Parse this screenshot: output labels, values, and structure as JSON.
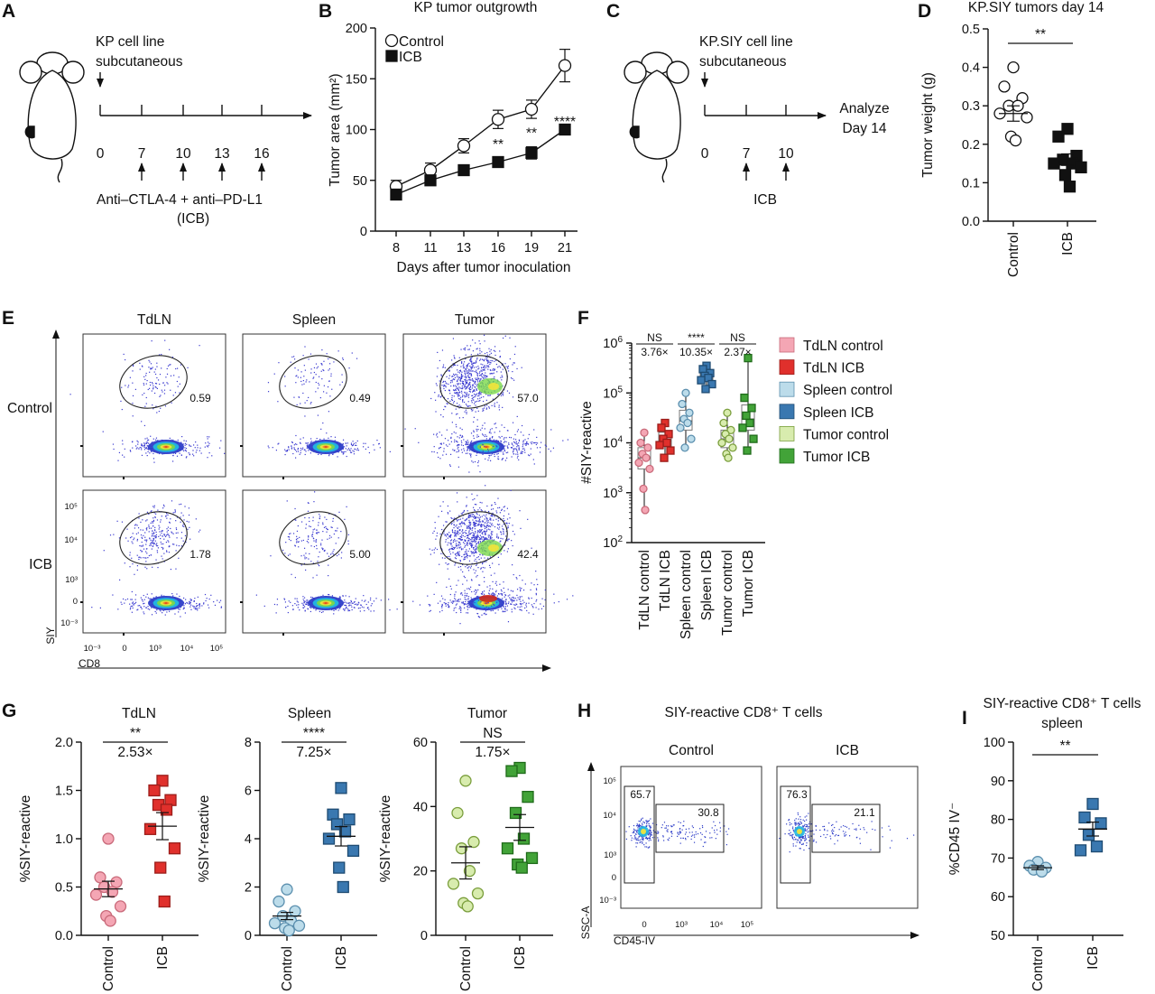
{
  "colors": {
    "tdln_control": "#f4a6b4",
    "tdln_icb": "#e0302c",
    "spleen_control": "#bcdcea",
    "spleen_icb": "#3a78b0",
    "tumor_control": "#d8ecae",
    "tumor_icb": "#42a338",
    "ink": "#111111"
  },
  "panel_a": {
    "label": "A",
    "text1": "KP cell line",
    "text2": "subcutaneous",
    "days": [
      "0",
      "7",
      "10",
      "13",
      "16"
    ],
    "treat1": "Anti–CTLA-4 + anti–PD-L1",
    "treat2": "(ICB)",
    "icon": "mouse-icon"
  },
  "panel_b": {
    "label": "B",
    "chart_data": {
      "type": "line",
      "title": "KP tumor outgrowth",
      "xlabel": "Days after tumor inoculation",
      "ylabel": "Tumor area (mm²)",
      "ylim": [
        0,
        200
      ],
      "yticks": [
        "0",
        "50",
        "100",
        "150",
        "200"
      ],
      "x": [
        "8",
        "11",
        "13",
        "16",
        "19",
        "21"
      ],
      "series": [
        {
          "name": "Control",
          "marker": "open-circle",
          "values": [
            44,
            60,
            84,
            110,
            120,
            163
          ],
          "err": [
            6,
            7,
            7,
            9,
            9,
            16
          ]
        },
        {
          "name": "ICB",
          "marker": "filled-square",
          "values": [
            36,
            50,
            60,
            68,
            77,
            100
          ],
          "err": [
            4,
            4,
            4,
            4,
            6,
            4
          ]
        }
      ],
      "annotations": [
        {
          "x": "16",
          "text": "**"
        },
        {
          "x": "19",
          "text": "**"
        },
        {
          "x": "21",
          "text": "****"
        }
      ],
      "legend": "top-left"
    }
  },
  "panel_c": {
    "label": "C",
    "text1": "KP.SIY cell line",
    "text2": "subcutaneous",
    "days": [
      "0",
      "7",
      "10"
    ],
    "treat": "ICB",
    "analyze1": "Analyze",
    "analyze2": "Day 14",
    "icon": "mouse-icon"
  },
  "panel_d": {
    "label": "D",
    "chart_data": {
      "type": "scatter",
      "title": "KP.SIY tumors day 14",
      "ylabel": "Tumor weight (g)",
      "ylim": [
        0,
        0.5
      ],
      "yticks": [
        "0.0",
        "0.1",
        "0.2",
        "0.3",
        "0.4",
        "0.5"
      ],
      "categories": [
        "Control",
        "ICB"
      ],
      "groups": [
        {
          "name": "Control",
          "marker": "open-circle",
          "points": [
            0.4,
            0.35,
            0.32,
            0.3,
            0.3,
            0.28,
            0.27,
            0.22,
            0.21
          ],
          "mean": 0.28,
          "sem": 0.02
        },
        {
          "name": "ICB",
          "marker": "filled-square",
          "points": [
            0.24,
            0.22,
            0.17,
            0.16,
            0.15,
            0.15,
            0.14,
            0.12,
            0.09
          ],
          "mean": 0.16,
          "sem": 0.015
        }
      ],
      "significance": "**"
    }
  },
  "panel_e": {
    "label": "E",
    "columns": [
      "TdLN",
      "Spleen",
      "Tumor"
    ],
    "rows": [
      "Control",
      "ICB"
    ],
    "gates": [
      [
        "0.59",
        "0.49",
        "57.0"
      ],
      [
        "1.78",
        "5.00",
        "42.4"
      ]
    ],
    "ylabel": "SIY",
    "xlabel": "CD8",
    "yticks": [
      "10⁵",
      "10⁴",
      "10³",
      "0",
      "10⁻³"
    ],
    "xticks": [
      "10⁻³",
      "0",
      "10³",
      "10⁴",
      "10⁵"
    ]
  },
  "panel_f": {
    "label": "F",
    "chart_data": {
      "type": "box",
      "ylabel": "#SIY-reactive",
      "yscale": "log",
      "ylim": [
        100,
        1000000
      ],
      "yticks": [
        {
          "base": "10",
          "exp": "2"
        },
        {
          "base": "10",
          "exp": "3"
        },
        {
          "base": "10",
          "exp": "4"
        },
        {
          "base": "10",
          "exp": "5"
        },
        {
          "base": "10",
          "exp": "6"
        }
      ],
      "categories": [
        "TdLN control",
        "TdLN ICB",
        "Spleen control",
        "Spleen ICB",
        "Tumor control",
        "Tumor ICB"
      ],
      "groups": [
        {
          "name": "TdLN control",
          "marker": "circle",
          "points": [
            16000,
            10000,
            8000,
            6000,
            5000,
            4000,
            3000,
            1200,
            450
          ]
        },
        {
          "name": "TdLN ICB",
          "marker": "square",
          "points": [
            25000,
            20000,
            15000,
            12000,
            10000,
            9000,
            7000,
            5000
          ]
        },
        {
          "name": "Spleen control",
          "marker": "circle",
          "points": [
            100000,
            60000,
            40000,
            30000,
            25000,
            20000,
            12000,
            8000
          ]
        },
        {
          "name": "Spleen ICB",
          "marker": "square",
          "points": [
            350000,
            300000,
            250000,
            220000,
            200000,
            180000,
            150000,
            120000
          ]
        },
        {
          "name": "Tumor control",
          "marker": "circle",
          "points": [
            40000,
            25000,
            18000,
            15000,
            12000,
            10000,
            8000,
            6000,
            5000
          ]
        },
        {
          "name": "Tumor ICB",
          "marker": "square",
          "points": [
            500000,
            80000,
            50000,
            35000,
            25000,
            20000,
            12000,
            7000
          ]
        }
      ],
      "comparisons": [
        {
          "pair": [
            "TdLN control",
            "TdLN ICB"
          ],
          "sig": "NS",
          "fold": "3.76×"
        },
        {
          "pair": [
            "Spleen control",
            "Spleen ICB"
          ],
          "sig": "****",
          "fold": "10.35×"
        },
        {
          "pair": [
            "Tumor control",
            "Tumor ICB"
          ],
          "sig": "NS",
          "fold": "2.37×"
        }
      ],
      "legend": "right"
    }
  },
  "panel_g": {
    "label": "G",
    "chart_data": [
      {
        "type": "scatter",
        "title": "TdLN",
        "ylabel": "%SIY-reactive",
        "ylim": [
          0,
          2.0
        ],
        "yticks": [
          "0.0",
          "0.5",
          "1.0",
          "1.5",
          "2.0"
        ],
        "categories": [
          "Control",
          "ICB"
        ],
        "sig": "**",
        "fold": "2.53×",
        "groups": [
          {
            "name": "Control",
            "points": [
              1.0,
              0.6,
              0.55,
              0.5,
              0.45,
              0.42,
              0.3,
              0.2,
              0.15
            ],
            "mean": 0.48,
            "sem": 0.08
          },
          {
            "name": "ICB",
            "points": [
              1.6,
              1.5,
              1.4,
              1.35,
              1.3,
              1.1,
              0.9,
              0.7,
              0.35
            ],
            "mean": 1.13,
            "sem": 0.14
          }
        ]
      },
      {
        "type": "scatter",
        "title": "Spleen",
        "ylabel": "%SIY-reactive",
        "ylim": [
          0,
          8
        ],
        "yticks": [
          "0",
          "2",
          "4",
          "6",
          "8"
        ],
        "categories": [
          "Control",
          "ICB"
        ],
        "sig": "****",
        "fold": "7.25×",
        "groups": [
          {
            "name": "Control",
            "points": [
              1.9,
              1.4,
              1.0,
              0.8,
              0.6,
              0.5,
              0.4,
              0.3,
              0.2
            ],
            "mean": 0.8,
            "sem": 0.15
          },
          {
            "name": "ICB",
            "points": [
              6.1,
              5.0,
              4.8,
              4.6,
              4.3,
              4.0,
              3.5,
              2.8,
              2.0
            ],
            "mean": 4.1,
            "sem": 0.4
          }
        ]
      },
      {
        "type": "scatter",
        "title": "Tumor",
        "ylabel": "%SIY-reactive",
        "ylim": [
          0,
          60
        ],
        "yticks": [
          "0",
          "20",
          "40",
          "60"
        ],
        "categories": [
          "Control",
          "ICB"
        ],
        "sig": "NS",
        "fold": "1.75×",
        "groups": [
          {
            "name": "Control",
            "points": [
              48,
              38,
              29,
              27,
              20,
              16,
              13,
              10,
              9
            ],
            "mean": 22.5,
            "sem": 5
          },
          {
            "name": "ICB",
            "points": [
              52,
              51,
              43,
              38,
              30,
              27,
              24,
              22,
              21
            ],
            "mean": 33.5,
            "sem": 4
          }
        ]
      }
    ]
  },
  "panel_h": {
    "label": "H",
    "title": "SIY-reactive CD8⁺ T cells",
    "columns": [
      "Control",
      "ICB"
    ],
    "gates": [
      [
        "65.7",
        "30.8"
      ],
      [
        "76.3",
        "21.1"
      ]
    ],
    "ylabel": "SSC-A",
    "xlabel": "CD45-IV",
    "yticks": [
      "10⁵",
      "10⁴",
      "10³",
      "0",
      "10⁻³"
    ],
    "xticks": [
      "0",
      "10³",
      "10⁴",
      "10⁵"
    ]
  },
  "panel_i": {
    "label": "I",
    "chart_data": {
      "type": "scatter",
      "title_line1": "SIY-reactive CD8⁺ T cells",
      "title_line2": "spleen",
      "ylabel": "%CD45 IV⁻",
      "ylim": [
        50,
        100
      ],
      "yticks": [
        "50",
        "60",
        "70",
        "80",
        "90",
        "100"
      ],
      "categories": [
        "Control",
        "ICB"
      ],
      "sig": "**",
      "groups": [
        {
          "name": "Control",
          "points": [
            69,
            68,
            67.5,
            67,
            66.5
          ],
          "mean": 67.5,
          "sem": 0.5
        },
        {
          "name": "ICB",
          "points": [
            84,
            80.5,
            79,
            76,
            73,
            72
          ],
          "mean": 77.5,
          "sem": 1.8
        }
      ]
    }
  }
}
